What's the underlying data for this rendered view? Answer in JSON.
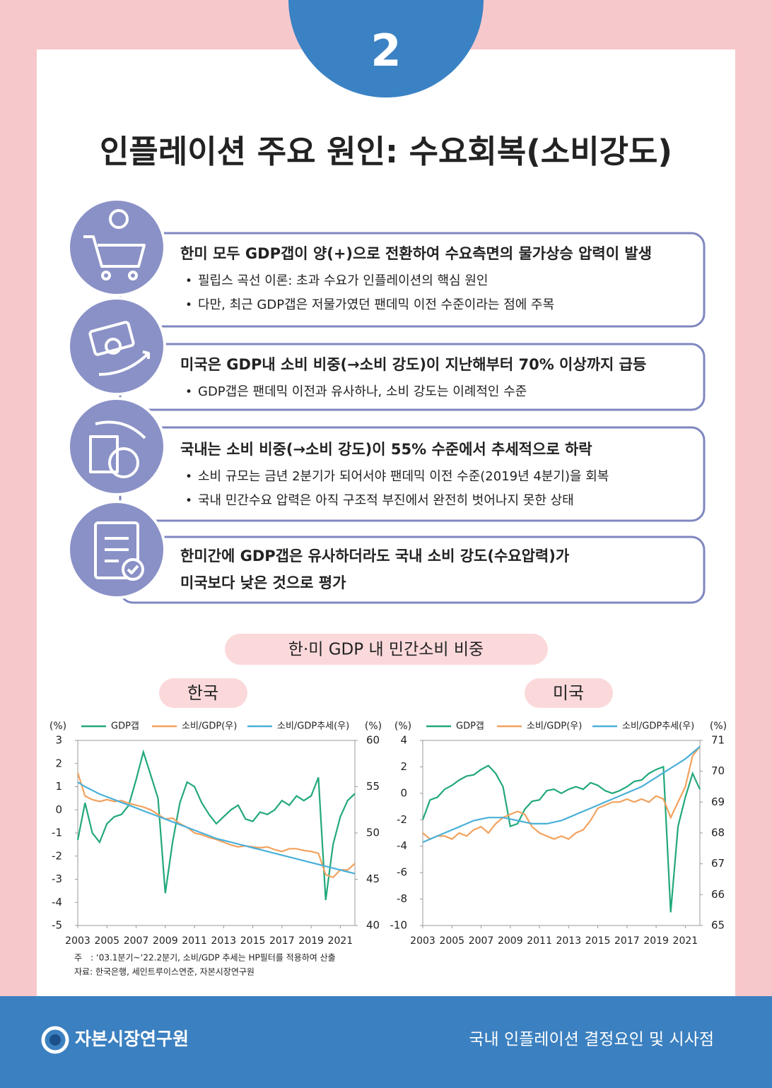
{
  "badge": "2",
  "title": "인플레이션 주요 원인: 수요회복(소비강도)",
  "items": [
    {
      "heading": [
        "한미 모두 GDP갭이 양(+)으로 전환하여 수요측면의 물가상승 압력이 발생"
      ],
      "bullets": [
        "필립스 곡선 이론: 초과 수요가 인플레이션의 핵심 원인",
        "다만, 최근 GDP갭은 저물가였던 팬데믹 이전 수준이라는 점에 주목"
      ]
    },
    {
      "heading": [
        "미국은 GDP내 소비 비중(→소비 강도)이 지난해부터 70% 이상까지 급등"
      ],
      "bullets": [
        "GDP갭은 팬데믹 이전과 유사하나, 소비 강도는 이례적인 수준"
      ]
    },
    {
      "heading": [
        "국내는 소비 비중(→소비 강도)이 55% 수준에서 추세적으로 하락"
      ],
      "bullets": [
        "소비 규모는 금년 2분기가 되어서야 팬데믹 이전 수준(2019년 4분기)을 회복",
        "국내 민간수요 압력은 아직 구조적 부진에서 완전히 벗어나지 못한 상태"
      ]
    },
    {
      "heading": [
        "한미간에 GDP갭은 유사하더라도 국내 소비 강도(수요압력)가",
        "미국보다 낮은 것으로 평가"
      ],
      "bullets": []
    }
  ],
  "chart_section_title": "한·미 GDP 내 민간소비 비중",
  "chart_data": [
    {
      "type": "line",
      "title": "한국",
      "y_label": "(%)",
      "y2_label": "(%)",
      "x": [
        2003,
        2003.5,
        2004,
        2004.5,
        2005,
        2005.5,
        2006,
        2006.5,
        2007,
        2007.5,
        2008,
        2008.5,
        2009,
        2009.5,
        2010,
        2010.5,
        2011,
        2011.5,
        2012,
        2012.5,
        2013,
        2013.5,
        2014,
        2014.5,
        2015,
        2015.5,
        2016,
        2016.5,
        2017,
        2017.5,
        2018,
        2018.5,
        2019,
        2019.5,
        2020,
        2020.5,
        2021,
        2021.5,
        2022
      ],
      "xlim": [
        2003,
        2022
      ],
      "xticks": [
        2003,
        2005,
        2007,
        2009,
        2011,
        2013,
        2015,
        2017,
        2019,
        2021
      ],
      "ylim": [
        -5,
        3
      ],
      "yticks": [
        -5,
        -4,
        -3,
        -2,
        -1,
        0,
        1,
        2,
        3
      ],
      "y2lim": [
        40,
        60
      ],
      "y2ticks": [
        40,
        45,
        50,
        55,
        60
      ],
      "series": [
        {
          "name": "GDP갭",
          "color": "#22a87a",
          "values": [
            -1.3,
            0.3,
            -1.0,
            -1.4,
            -0.6,
            -0.3,
            -0.2,
            0.2,
            1.3,
            2.5,
            1.5,
            0.5,
            -3.6,
            -1.4,
            0.3,
            1.2,
            1.0,
            0.3,
            -0.2,
            -0.6,
            -0.3,
            0.0,
            0.2,
            -0.4,
            -0.5,
            -0.1,
            -0.2,
            0.0,
            0.4,
            0.2,
            0.6,
            0.4,
            0.6,
            1.4,
            -3.9,
            -1.5,
            -0.3,
            0.4,
            0.7
          ]
        },
        {
          "name": "소비/GDP(우)",
          "color": "#f2a25f",
          "axis": "y2",
          "values": [
            56.5,
            54.0,
            53.6,
            53.4,
            53.6,
            53.4,
            53.5,
            53.2,
            53.0,
            52.8,
            52.5,
            52.0,
            51.5,
            51.6,
            51.0,
            50.6,
            50.0,
            49.8,
            49.5,
            49.3,
            49.0,
            48.7,
            48.5,
            48.6,
            48.5,
            48.4,
            48.5,
            48.2,
            48.0,
            48.3,
            48.3,
            48.1,
            48.0,
            47.8,
            45.5,
            45.2,
            46.0,
            46.0,
            46.7
          ]
        },
        {
          "name": "소비/GDP추세(우)",
          "color": "#4ab0d8",
          "axis": "y2",
          "values": [
            55.5,
            55.0,
            54.6,
            54.2,
            53.9,
            53.6,
            53.3,
            53.0,
            52.7,
            52.4,
            52.1,
            51.8,
            51.5,
            51.2,
            50.9,
            50.6,
            50.3,
            50.0,
            49.7,
            49.4,
            49.2,
            49.0,
            48.8,
            48.6,
            48.4,
            48.2,
            48.0,
            47.8,
            47.6,
            47.4,
            47.2,
            47.0,
            46.8,
            46.6,
            46.4,
            46.2,
            46.0,
            45.8,
            45.6
          ]
        }
      ]
    },
    {
      "type": "line",
      "title": "미국",
      "y_label": "(%)",
      "y2_label": "(%)",
      "x": [
        2003,
        2003.5,
        2004,
        2004.5,
        2005,
        2005.5,
        2006,
        2006.5,
        2007,
        2007.5,
        2008,
        2008.5,
        2009,
        2009.5,
        2010,
        2010.5,
        2011,
        2011.5,
        2012,
        2012.5,
        2013,
        2013.5,
        2014,
        2014.5,
        2015,
        2015.5,
        2016,
        2016.5,
        2017,
        2017.5,
        2018,
        2018.5,
        2019,
        2019.5,
        2020,
        2020.5,
        2021,
        2021.5,
        2022
      ],
      "xlim": [
        2003,
        2022
      ],
      "xticks": [
        2003,
        2005,
        2007,
        2009,
        2011,
        2013,
        2015,
        2017,
        2019,
        2021
      ],
      "ylim": [
        -10,
        4
      ],
      "yticks": [
        -10,
        -8,
        -6,
        -4,
        -2,
        0,
        2,
        4
      ],
      "y2lim": [
        65,
        71
      ],
      "y2ticks": [
        65,
        66,
        67,
        68,
        69,
        70,
        71
      ],
      "series": [
        {
          "name": "GDP갭",
          "color": "#22a87a",
          "values": [
            -2.0,
            -0.5,
            -0.3,
            0.3,
            0.6,
            1.0,
            1.3,
            1.4,
            1.8,
            2.1,
            1.5,
            0.5,
            -2.5,
            -2.3,
            -1.2,
            -0.6,
            -0.5,
            0.2,
            0.3,
            0.0,
            0.3,
            0.5,
            0.3,
            0.8,
            0.6,
            0.2,
            0.0,
            0.2,
            0.5,
            0.9,
            1.0,
            1.5,
            1.8,
            2.0,
            -9.0,
            -2.5,
            -0.3,
            1.5,
            0.3
          ]
        },
        {
          "name": "소비/GDP(우)",
          "color": "#f2a25f",
          "axis": "y2",
          "values": [
            68.0,
            67.8,
            67.9,
            67.9,
            67.8,
            68.0,
            67.9,
            68.1,
            68.2,
            68.0,
            68.3,
            68.5,
            68.6,
            68.7,
            68.6,
            68.2,
            68.0,
            67.9,
            67.8,
            67.9,
            67.8,
            68.0,
            68.1,
            68.4,
            68.8,
            68.9,
            69.0,
            69.0,
            69.1,
            69.0,
            69.1,
            69.0,
            69.2,
            69.1,
            68.5,
            69.0,
            69.5,
            70.5,
            70.8
          ]
        },
        {
          "name": "소비/GDP추세(우)",
          "color": "#4ab0d8",
          "axis": "y2",
          "values": [
            67.7,
            67.8,
            67.9,
            68.0,
            68.1,
            68.2,
            68.3,
            68.4,
            68.45,
            68.5,
            68.5,
            68.5,
            68.45,
            68.4,
            68.35,
            68.3,
            68.3,
            68.3,
            68.35,
            68.4,
            68.5,
            68.6,
            68.7,
            68.8,
            68.9,
            69.0,
            69.1,
            69.2,
            69.3,
            69.4,
            69.5,
            69.65,
            69.8,
            69.95,
            70.1,
            70.25,
            70.4,
            70.6,
            70.8
          ]
        }
      ]
    }
  ],
  "notes": [
    "주　: ‘03.1분기~‘22.2분기, 소비/GDP 추세는 HP필터를 적용하여 산출",
    "자료: 한국은행, 세인트루이스연준, 자본시장연구원"
  ],
  "footer": {
    "org": "자본시장연구원",
    "report": "국내 인플레이션 결정요인 및 시사점"
  }
}
